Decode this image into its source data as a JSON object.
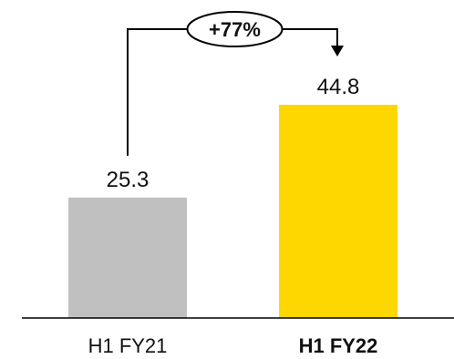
{
  "chart_data": {
    "type": "bar",
    "categories": [
      "H1 FY21",
      "H1 FY22"
    ],
    "values": [
      25.3,
      44.8
    ],
    "value_labels": [
      "25.3",
      "44.8"
    ],
    "colors": [
      "#c0c0c0",
      "#ffd700"
    ],
    "bold_categories": [
      false,
      true
    ],
    "ylim": [
      0,
      51.5
    ],
    "grid": false,
    "annotation": {
      "label": "+77%"
    }
  }
}
